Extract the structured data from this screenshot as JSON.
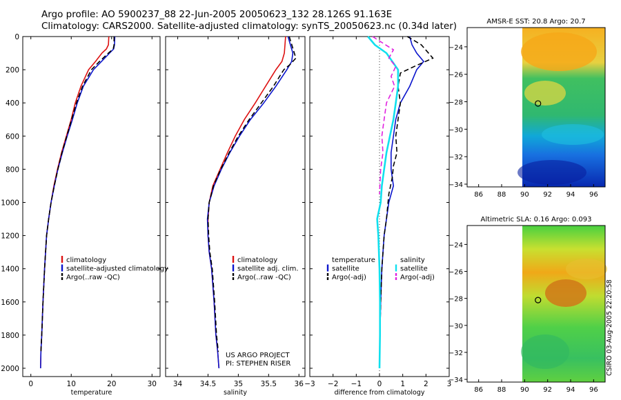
{
  "header": {
    "line1": "Argo profile: AO 5900237_88 22-Jun-2005 20050623_132 28.126S 91.163E",
    "line2": "Climatology: CARS2000. Satellite-adjusted climatology: synTS_20050623.nc (0.34d later)"
  },
  "stamp": "CSIRO 03-Aug-2005 22:20:58",
  "colors": {
    "climatology": "#dd1111",
    "satellite": "#0a14cc",
    "argo": "#000000",
    "sat_salinity": "#10e0ee",
    "argo_salinity_adj": "#e020e0"
  },
  "chart_data": [
    {
      "type": "line",
      "name": "temperature-panel",
      "xlabel": "temperature",
      "ylabel": "",
      "xlim": [
        -2,
        32
      ],
      "ylim": [
        2050,
        0
      ],
      "xticks": [
        0,
        10,
        20,
        30
      ],
      "yticks": [
        0,
        200,
        400,
        600,
        800,
        1000,
        1200,
        1400,
        1600,
        1800,
        2000
      ],
      "legend": [
        "climatology",
        "satellite-adjusted climatology",
        "Argo(..raw -QC)"
      ],
      "series": [
        {
          "name": "climatology",
          "style": "solid",
          "color": "#dd1111",
          "x": [
            19.3,
            19.2,
            18.7,
            17.6,
            16.0,
            14.3,
            12.4,
            11.0,
            10.0,
            8.8,
            7.6,
            6.6,
            5.7,
            5.0,
            4.4,
            3.9,
            3.4,
            3.0,
            2.7,
            2.5,
            2.4
          ],
          "y": [
            0,
            50,
            75,
            100,
            150,
            200,
            300,
            400,
            500,
            600,
            700,
            800,
            900,
            1000,
            1100,
            1200,
            1400,
            1600,
            1800,
            1900,
            2000
          ]
        },
        {
          "name": "satellite-adjusted climatology",
          "style": "solid",
          "color": "#0a14cc",
          "x": [
            20.8,
            20.7,
            20.5,
            19.5,
            17.5,
            15.5,
            13.0,
            11.5,
            10.3,
            9.0,
            7.8,
            6.7,
            5.8,
            5.0,
            4.4,
            3.9,
            3.4,
            3.0,
            2.7,
            2.5,
            2.4
          ],
          "y": [
            0,
            50,
            75,
            100,
            150,
            200,
            300,
            400,
            500,
            600,
            700,
            800,
            900,
            1000,
            1100,
            1200,
            1400,
            1600,
            1800,
            1900,
            2000
          ]
        },
        {
          "name": "Argo(..raw -QC)",
          "style": "dashed",
          "color": "#000000",
          "x": [
            20.6,
            20.6,
            20.4,
            19.2,
            17.0,
            15.0,
            12.8,
            11.3,
            10.1,
            8.9,
            7.7,
            6.7,
            5.8,
            5.0,
            4.4,
            3.9,
            3.4,
            3.0,
            2.7,
            2.5
          ],
          "y": [
            0,
            50,
            75,
            100,
            150,
            200,
            300,
            400,
            500,
            600,
            700,
            800,
            900,
            1000,
            1100,
            1200,
            1400,
            1600,
            1800,
            1900
          ]
        }
      ]
    },
    {
      "type": "line",
      "name": "salinity-panel",
      "xlabel": "salinity",
      "xlim": [
        33.8,
        36.1
      ],
      "ylim": [
        2050,
        0
      ],
      "xticks": [
        34,
        34.5,
        35,
        35.5,
        36
      ],
      "legend": [
        "climatology",
        "satellite adj. clim.",
        "Argo(..raw -QC)"
      ],
      "annotation": [
        "US ARGO PROJECT",
        "PI: STEPHEN RISER"
      ],
      "series": [
        {
          "name": "climatology",
          "style": "solid",
          "color": "#dd1111",
          "x": [
            35.78,
            35.76,
            35.72,
            35.62,
            35.45,
            35.28,
            35.1,
            34.95,
            34.82,
            34.7,
            34.58,
            34.52,
            34.5,
            34.5,
            34.52,
            34.56,
            34.6,
            34.63,
            34.66,
            34.68
          ],
          "y": [
            0,
            100,
            150,
            200,
            300,
            400,
            500,
            600,
            700,
            800,
            900,
            1000,
            1100,
            1200,
            1300,
            1400,
            1600,
            1800,
            1900,
            2000
          ]
        },
        {
          "name": "satellite adj. clim.",
          "style": "solid",
          "color": "#0a14cc",
          "x": [
            35.82,
            35.9,
            35.88,
            35.8,
            35.62,
            35.42,
            35.2,
            35.02,
            34.86,
            34.72,
            34.6,
            34.52,
            34.49,
            34.5,
            34.52,
            34.56,
            34.6,
            34.63,
            34.66,
            34.68
          ],
          "y": [
            0,
            100,
            150,
            200,
            300,
            400,
            500,
            600,
            700,
            800,
            900,
            1000,
            1100,
            1200,
            1300,
            1400,
            1600,
            1800,
            1900,
            2000
          ]
        },
        {
          "name": "Argo(..raw -QC)",
          "style": "dashed",
          "color": "#000000",
          "x": [
            35.84,
            35.95,
            35.85,
            35.75,
            35.58,
            35.38,
            35.18,
            35.0,
            34.85,
            34.71,
            34.59,
            34.52,
            34.5,
            34.51,
            34.53,
            34.57,
            34.61,
            34.64,
            34.67
          ],
          "y": [
            0,
            130,
            170,
            200,
            300,
            400,
            500,
            600,
            700,
            800,
            900,
            1000,
            1100,
            1200,
            1300,
            1400,
            1600,
            1800,
            1900
          ]
        }
      ]
    },
    {
      "type": "line",
      "name": "difference-panel",
      "xlabel": "difference from climatology",
      "xlim": [
        -3,
        3
      ],
      "ylim": [
        2050,
        0
      ],
      "xticks": [
        -3,
        -2,
        -1,
        0,
        1,
        2,
        3
      ],
      "legend_left": {
        "header": "temperature",
        "items": [
          "satellite",
          "Argo(-adj)"
        ]
      },
      "legend_right": {
        "header": "salinity",
        "items": [
          "satellite",
          "Argo(-adj)"
        ]
      },
      "series": [
        {
          "name": "temperature satellite",
          "style": "solid",
          "color": "#0a14cc",
          "x": [
            1.3,
            1.4,
            1.6,
            1.9,
            1.6,
            1.3,
            0.9,
            0.7,
            0.6,
            0.5,
            0.5,
            0.6,
            0.4,
            0.3,
            0.2,
            0.1,
            0.05,
            0.02,
            0.0
          ],
          "y": [
            0,
            50,
            100,
            150,
            200,
            300,
            400,
            500,
            600,
            700,
            800,
            900,
            1000,
            1100,
            1200,
            1400,
            1600,
            1800,
            2000
          ]
        },
        {
          "name": "temperature Argo(-adj)",
          "style": "dashed",
          "color": "#000000",
          "x": [
            1.2,
            1.8,
            2.3,
            1.5,
            0.9,
            0.8,
            0.9,
            0.8,
            0.7,
            0.75,
            0.6,
            0.55,
            0.4,
            0.3,
            0.2,
            0.1,
            0.05,
            0.02
          ],
          "y": [
            0,
            50,
            130,
            180,
            220,
            300,
            400,
            500,
            600,
            700,
            780,
            850,
            950,
            1100,
            1200,
            1400,
            1600,
            1800
          ]
        },
        {
          "name": "salinity satellite",
          "style": "solid",
          "color": "#10e0ee",
          "x": [
            -0.5,
            -0.2,
            0.3,
            0.8,
            0.8,
            0.7,
            0.6,
            0.45,
            0.3,
            0.2,
            0.1,
            0.05,
            -0.1,
            -0.05,
            0.0,
            0.02,
            0.02,
            0.0
          ],
          "y": [
            0,
            50,
            100,
            200,
            300,
            400,
            500,
            600,
            700,
            800,
            900,
            1000,
            1100,
            1200,
            1400,
            1600,
            1800,
            2000
          ]
        },
        {
          "name": "salinity Argo(-adj)",
          "style": "dashed",
          "color": "#e020e0",
          "x": [
            -0.3,
            0.6,
            0.4,
            0.7,
            0.5,
            0.65,
            0.3,
            0.2,
            0.1,
            0.15,
            0.05,
            0.0
          ],
          "y": [
            0,
            80,
            130,
            180,
            240,
            300,
            400,
            500,
            600,
            700,
            800,
            950
          ]
        }
      ]
    },
    {
      "type": "heatmap",
      "name": "sst-map",
      "title": "AMSR-E SST: 20.8 Argo: 20.7",
      "xlim": [
        85,
        97
      ],
      "ylim": [
        -34.2,
        -22.6
      ],
      "xticks": [
        86,
        88,
        90,
        92,
        94,
        96
      ],
      "yticks": [
        -24,
        -26,
        -28,
        -30,
        -32,
        -34
      ],
      "data_xlim": [
        90,
        97
      ],
      "float_position": [
        91.163,
        -28.126
      ]
    },
    {
      "type": "heatmap",
      "name": "sla-map",
      "title": "Altimetric SLA: 0.16 Argo: 0.093",
      "xlim": [
        85,
        97
      ],
      "ylim": [
        -34.2,
        -22.6
      ],
      "xticks": [
        86,
        88,
        90,
        92,
        94,
        96
      ],
      "yticks": [
        -24,
        -26,
        -28,
        -30,
        -32,
        -34
      ],
      "data_xlim": [
        90,
        97
      ],
      "float_position": [
        91.163,
        -28.126
      ]
    }
  ]
}
